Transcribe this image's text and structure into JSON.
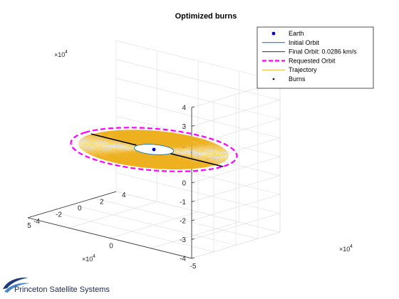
{
  "chart_data": {
    "type": "line",
    "title": "Optimized burns",
    "axes": {
      "x": {
        "ticks": [
          -5,
          0,
          5
        ],
        "multiplier": "×10^4",
        "lim": [
          -5,
          5
        ]
      },
      "y": {
        "ticks": [
          -4,
          -2,
          0,
          2,
          4
        ],
        "multiplier": "×10^4",
        "lim": [
          -4,
          4
        ]
      },
      "z": {
        "ticks": [
          -4,
          -3,
          -2,
          -1,
          0,
          1,
          2,
          3,
          4
        ],
        "multiplier": "×10^4",
        "lim": [
          -4,
          4
        ]
      },
      "grid": true,
      "view": "3d"
    },
    "legend": {
      "position": "top-right",
      "entries": [
        {
          "label": "Earth",
          "style": "marker",
          "color": "#0000cc"
        },
        {
          "label": "Initial Orbit",
          "style": "line",
          "color": "#0072bd"
        },
        {
          "label": "Final Orbit: 0.0286 km/s",
          "style": "line",
          "color": "#333333"
        },
        {
          "label": "Requested Orbit",
          "style": "dashed",
          "color": "#ff00ff"
        },
        {
          "label": "Trajectory",
          "style": "line",
          "color": "#edb120"
        },
        {
          "label": "Burns",
          "style": "dot",
          "color": "#000000"
        }
      ]
    },
    "series": [
      {
        "name": "Earth",
        "points": [
          [
            0,
            0,
            0
          ]
        ]
      },
      {
        "name": "Requested Orbit",
        "shape": "circle",
        "radius": 42000
      },
      {
        "name": "Trajectory",
        "shape": "spiral",
        "radius_start": 10000,
        "radius_end": 38000,
        "turns": 40
      },
      {
        "name": "Burns",
        "shape": "line-of-points",
        "from": [
          -42000,
          0,
          0
        ],
        "to": [
          38000,
          0,
          0
        ]
      }
    ]
  },
  "title_text": "Optimized burns",
  "exponent_label": "×10",
  "exponent_power": "4",
  "colors": {
    "earth": "#0000cc",
    "initial": "#0072bd",
    "final": "#333333",
    "requested": "#ff00ff",
    "trajectory": "#edb120",
    "burns": "#000000",
    "grid": "#dedede",
    "axis": "#262626"
  },
  "logo": {
    "text": "Princeton Satellite Systems"
  }
}
